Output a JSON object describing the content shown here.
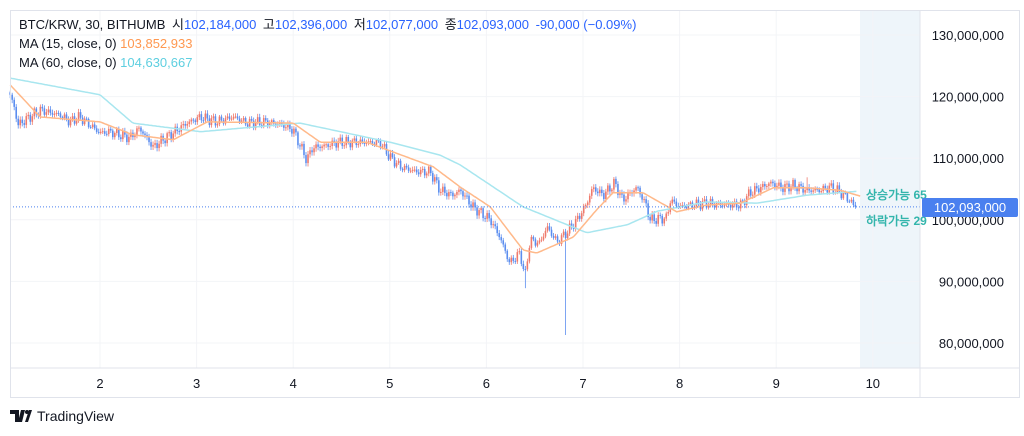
{
  "legend": {
    "symbol": "BTC/KRW, 30, BITHUMB",
    "open_label": "시",
    "open": "102,184,000",
    "high_label": "고",
    "high": "102,396,000",
    "low_label": "저",
    "low": "102,077,000",
    "close_label": "종",
    "close": "102,093,000",
    "change": "-90,000 (−0.09%)",
    "ma15_label": "MA (15, close, 0)",
    "ma15_value": "103,852,933",
    "ma60_label": "MA (60, close, 0)",
    "ma60_value": "104,630,667"
  },
  "signals": {
    "up": "상승가능 65",
    "down": "하락가능 29"
  },
  "price_tag": "102,093,000",
  "branding": "TradingView",
  "colors": {
    "up": "#ef7a6c",
    "down": "#5b8def",
    "ma15": "#ffb98a",
    "ma60": "#a8e6ef",
    "last_price": "#4a80ef",
    "forecast_zone": "#eef5fa"
  },
  "chart_data": {
    "type": "candlestick",
    "title": "",
    "xlabel": "",
    "ylabel": "",
    "x_ticks": [
      "2",
      "3",
      "4",
      "5",
      "6",
      "7",
      "8",
      "9",
      "10"
    ],
    "x_tick_values": [
      2,
      3,
      4,
      5,
      6,
      7,
      8,
      9,
      10
    ],
    "y_ticks": [
      "130,000,000",
      "120,000,000",
      "110,000,000",
      "100,000,000",
      "90,000,000",
      "80,000,000"
    ],
    "y_tick_values": [
      130,
      120,
      110,
      100,
      90,
      80
    ],
    "y_unit": "million KRW",
    "xlim": [
      1.0,
      10.5
    ],
    "ylim": [
      76,
      134
    ],
    "grid": true,
    "candle_interval": "30m",
    "close_path": [
      [
        1.07,
        120.3
      ],
      [
        1.12,
        117.8
      ],
      [
        1.15,
        115.4
      ],
      [
        1.38,
        117.8
      ],
      [
        1.59,
        117.0
      ],
      [
        1.69,
        115.9
      ],
      [
        1.79,
        116.7
      ],
      [
        2.0,
        114.1
      ],
      [
        2.1,
        114.3
      ],
      [
        2.31,
        113.3
      ],
      [
        2.41,
        114.9
      ],
      [
        2.55,
        111.8
      ],
      [
        2.65,
        113.0
      ],
      [
        2.8,
        114.6
      ],
      [
        2.9,
        115.7
      ],
      [
        3.04,
        116.7
      ],
      [
        3.21,
        115.9
      ],
      [
        3.38,
        116.7
      ],
      [
        3.52,
        115.7
      ],
      [
        3.73,
        115.9
      ],
      [
        3.89,
        115.4
      ],
      [
        4.0,
        114.6
      ],
      [
        4.14,
        109.7
      ],
      [
        4.2,
        111.7
      ],
      [
        4.35,
        112.1
      ],
      [
        4.48,
        112.6
      ],
      [
        4.69,
        112.6
      ],
      [
        4.9,
        112.5
      ],
      [
        5.0,
        110.2
      ],
      [
        5.11,
        108.6
      ],
      [
        5.28,
        107.8
      ],
      [
        5.42,
        107.8
      ],
      [
        5.52,
        104.8
      ],
      [
        5.65,
        104.0
      ],
      [
        5.73,
        104.8
      ],
      [
        5.86,
        102.1
      ],
      [
        6.04,
        100.0
      ],
      [
        6.14,
        97.2
      ],
      [
        6.24,
        93.0
      ],
      [
        6.35,
        94.6
      ],
      [
        6.4,
        90.7
      ],
      [
        6.45,
        96.7
      ],
      [
        6.55,
        96.2
      ],
      [
        6.63,
        98.8
      ],
      [
        6.73,
        96.4
      ],
      [
        6.83,
        97.9
      ],
      [
        6.94,
        100.0
      ],
      [
        7.04,
        102.7
      ],
      [
        7.1,
        105.2
      ],
      [
        7.21,
        104.0
      ],
      [
        7.33,
        106.0
      ],
      [
        7.41,
        103.2
      ],
      [
        7.56,
        105.3
      ],
      [
        7.66,
        102.1
      ],
      [
        7.69,
        100.0
      ],
      [
        7.87,
        100.3
      ],
      [
        7.9,
        103.2
      ],
      [
        8.0,
        102.1
      ],
      [
        8.14,
        102.4
      ],
      [
        8.28,
        102.7
      ],
      [
        8.49,
        102.4
      ],
      [
        8.63,
        102.4
      ],
      [
        8.73,
        104.4
      ],
      [
        8.94,
        106.0
      ],
      [
        9.07,
        105.2
      ],
      [
        9.17,
        105.6
      ],
      [
        9.32,
        104.8
      ],
      [
        9.45,
        104.8
      ],
      [
        9.56,
        105.3
      ],
      [
        9.66,
        104.5
      ],
      [
        9.76,
        103.2
      ],
      [
        9.82,
        101.9
      ],
      [
        9.84,
        102.093
      ]
    ],
    "wick_extremes": [
      {
        "t": 6.4,
        "low": 88.9
      },
      {
        "t": 6.83,
        "low": 81.3
      },
      {
        "t": 9.32,
        "high": 106.9
      }
    ],
    "series": [
      {
        "name": "MA (15, close, 0)",
        "points": [
          [
            1.07,
            121.9
          ],
          [
            1.38,
            116.7
          ],
          [
            2.0,
            115.9
          ],
          [
            2.34,
            113.8
          ],
          [
            2.76,
            113.0
          ],
          [
            3.11,
            115.9
          ],
          [
            4.0,
            115.7
          ],
          [
            4.28,
            112.6
          ],
          [
            4.76,
            112.6
          ],
          [
            5.45,
            108.6
          ],
          [
            5.73,
            105.3
          ],
          [
            6.04,
            102.1
          ],
          [
            6.38,
            95.1
          ],
          [
            6.52,
            94.6
          ],
          [
            6.9,
            97.2
          ],
          [
            7.14,
            101.6
          ],
          [
            7.31,
            104.4
          ],
          [
            7.62,
            104.4
          ],
          [
            7.97,
            101.3
          ],
          [
            8.28,
            102.4
          ],
          [
            8.63,
            102.7
          ],
          [
            8.97,
            105.2
          ],
          [
            9.32,
            105.2
          ],
          [
            9.66,
            104.8
          ],
          [
            9.87,
            103.85
          ]
        ]
      },
      {
        "name": "MA (60, close, 0)",
        "points": [
          [
            1.07,
            123.0
          ],
          [
            2.0,
            120.3
          ],
          [
            2.34,
            115.7
          ],
          [
            3.04,
            114.3
          ],
          [
            4.07,
            115.7
          ],
          [
            5.0,
            112.6
          ],
          [
            5.52,
            110.5
          ],
          [
            5.73,
            108.9
          ],
          [
            6.38,
            102.1
          ],
          [
            7.04,
            97.9
          ],
          [
            7.46,
            99.2
          ],
          [
            7.77,
            101.4
          ],
          [
            8.28,
            102.9
          ],
          [
            8.8,
            102.7
          ],
          [
            9.32,
            104.0
          ],
          [
            9.84,
            104.63
          ]
        ]
      }
    ],
    "last_price": 102.093
  }
}
